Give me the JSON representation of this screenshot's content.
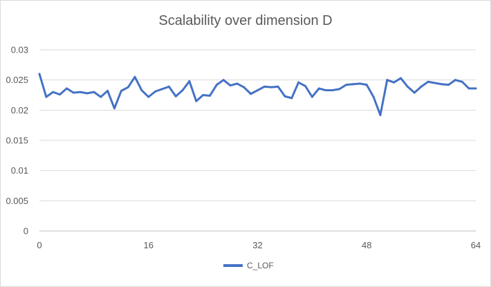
{
  "chart_data": {
    "type": "line",
    "title": "Scalability over dimension D",
    "xlabel": "",
    "ylabel": "",
    "xlim": [
      0,
      64
    ],
    "ylim": [
      0,
      0.03
    ],
    "xticks": [
      "0",
      "16",
      "32",
      "48",
      "64"
    ],
    "yticks": [
      "0",
      "0.005",
      "0.01",
      "0.015",
      "0.02",
      "0.025",
      "0.03"
    ],
    "grid": true,
    "legend_position": "bottom",
    "color": "#4472c4",
    "series": [
      {
        "name": "C_LOF",
        "x": [
          0,
          1,
          2,
          3,
          4,
          5,
          6,
          7,
          8,
          9,
          10,
          11,
          12,
          13,
          14,
          15,
          16,
          17,
          18,
          19,
          20,
          21,
          22,
          23,
          24,
          25,
          26,
          27,
          28,
          29,
          30,
          31,
          32,
          33,
          34,
          35,
          36,
          37,
          38,
          39,
          40,
          41,
          42,
          43,
          44,
          45,
          46,
          47,
          48,
          49,
          50,
          51,
          52,
          53,
          54,
          55,
          56,
          57,
          58,
          59,
          60,
          61,
          62,
          63,
          64
        ],
        "values": [
          0.026,
          0.0222,
          0.023,
          0.0226,
          0.0236,
          0.0229,
          0.023,
          0.0228,
          0.023,
          0.0222,
          0.0232,
          0.0203,
          0.0232,
          0.0238,
          0.0255,
          0.0233,
          0.0222,
          0.0231,
          0.0235,
          0.0239,
          0.0223,
          0.0233,
          0.0248,
          0.0215,
          0.0225,
          0.0224,
          0.0242,
          0.025,
          0.0241,
          0.0244,
          0.0238,
          0.0227,
          0.0233,
          0.0239,
          0.0238,
          0.0239,
          0.0223,
          0.022,
          0.0246,
          0.024,
          0.0222,
          0.0236,
          0.0233,
          0.0233,
          0.0235,
          0.0242,
          0.0243,
          0.0244,
          0.0242,
          0.0222,
          0.0192,
          0.025,
          0.0246,
          0.0253,
          0.0239,
          0.0229,
          0.0239,
          0.0247,
          0.0245,
          0.0243,
          0.0242,
          0.025,
          0.0247,
          0.0236,
          0.0236
        ]
      }
    ]
  }
}
